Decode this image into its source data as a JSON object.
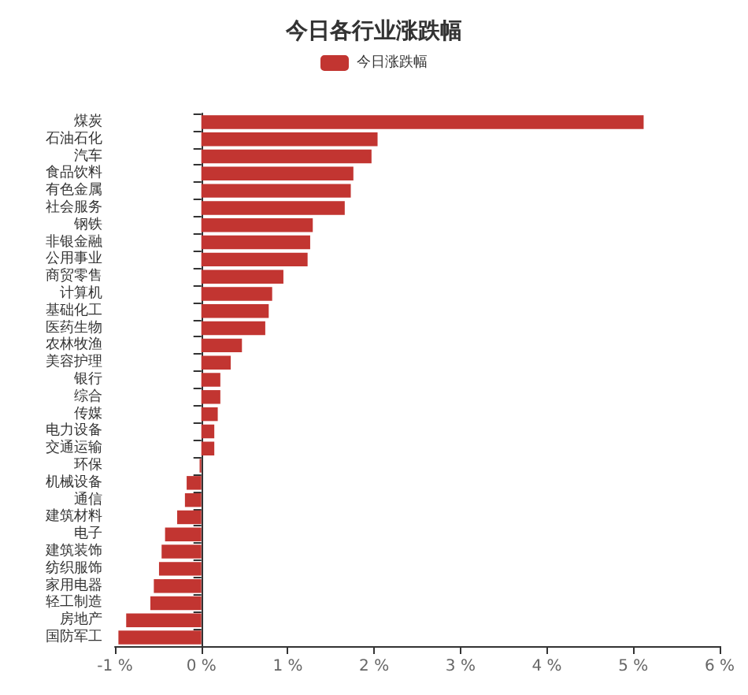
{
  "chart_data": {
    "type": "bar",
    "orientation": "horizontal",
    "title": "今日各行业涨跌幅",
    "categories": [
      "煤炭",
      "石油石化",
      "汽车",
      "食品饮料",
      "有色金属",
      "社会服务",
      "钢铁",
      "非银金融",
      "公用事业",
      "商贸零售",
      "计算机",
      "基础化工",
      "医药生物",
      "农林牧渔",
      "美容护理",
      "银行",
      "综合",
      "传媒",
      "电力设备",
      "交通运输",
      "环保",
      "机械设备",
      "通信",
      "建筑材料",
      "电子",
      "建筑装饰",
      "纺织服饰",
      "家用电器",
      "轻工制造",
      "房地产",
      "国防军工"
    ],
    "series": [
      {
        "name": "今日涨跌幅",
        "color": "#c23531",
        "values": [
          5.12,
          2.04,
          1.97,
          1.76,
          1.73,
          1.66,
          1.29,
          1.26,
          1.23,
          0.95,
          0.82,
          0.78,
          0.74,
          0.47,
          0.34,
          0.22,
          0.22,
          0.19,
          0.15,
          0.15,
          -0.02,
          -0.17,
          -0.19,
          -0.28,
          -0.42,
          -0.46,
          -0.49,
          -0.55,
          -0.59,
          -0.87,
          -0.96
        ]
      }
    ],
    "xlim": [
      -1,
      6
    ],
    "xticks": [
      {
        "value": -1,
        "label": "-1 %"
      },
      {
        "value": 0,
        "label": "0 %"
      },
      {
        "value": 1,
        "label": "1 %"
      },
      {
        "value": 2,
        "label": "2 %"
      },
      {
        "value": 3,
        "label": "3 %"
      },
      {
        "value": 4,
        "label": "4 %"
      },
      {
        "value": 5,
        "label": "5 %"
      },
      {
        "value": 6,
        "label": "6 %"
      }
    ],
    "legend": "top"
  }
}
